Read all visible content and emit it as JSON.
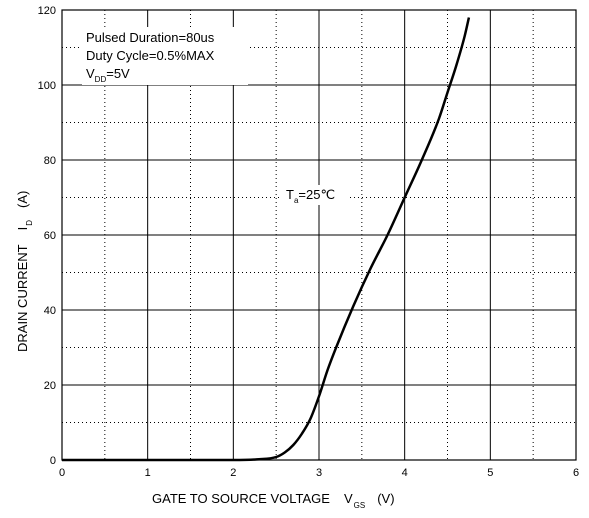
{
  "chart_data": {
    "type": "line",
    "xlabel": {
      "text": "GATE TO SOURCE VOLTAGE",
      "symbol": "V",
      "subscript": "GS",
      "unit": "(V)"
    },
    "ylabel": {
      "text": "DRAIN CURRENT",
      "symbol": "I",
      "subscript": "D",
      "unit": "(A)"
    },
    "xlim": [
      0,
      6
    ],
    "ylim": [
      0,
      120
    ],
    "x_ticks": [
      "0",
      "1",
      "2",
      "3",
      "4",
      "5",
      "6"
    ],
    "y_ticks": [
      "0",
      "20",
      "40",
      "60",
      "80",
      "100",
      "120"
    ],
    "grid": "solid major lines, dotted minor lines",
    "annotations": {
      "conditions": {
        "line1": "Pulsed Duration=80us",
        "line2": "Duty Cycle=0.5%MAX",
        "vdd_symbol": "V",
        "vdd_subscript": "DD",
        "vdd_value": "=5V"
      },
      "curve_label": {
        "symbol": "T",
        "subscript": "a",
        "value": "=25℃"
      }
    },
    "series": [
      {
        "color": "#000000",
        "x": [
          0.0,
          1.0,
          2.0,
          2.3,
          2.5,
          2.6,
          2.7,
          2.8,
          2.9,
          3.0,
          3.1,
          3.2,
          3.4,
          3.6,
          3.8,
          4.0,
          4.2,
          4.4,
          4.5,
          4.6,
          4.7,
          4.75
        ],
        "y": [
          0.0,
          0.0,
          0.0,
          0.2,
          0.8,
          2.0,
          4.0,
          7.0,
          11.0,
          17.0,
          24.0,
          30.0,
          41.0,
          51.0,
          60.0,
          70.0,
          80.0,
          91.0,
          98.0,
          105.0,
          113.0,
          118.0
        ]
      }
    ]
  }
}
